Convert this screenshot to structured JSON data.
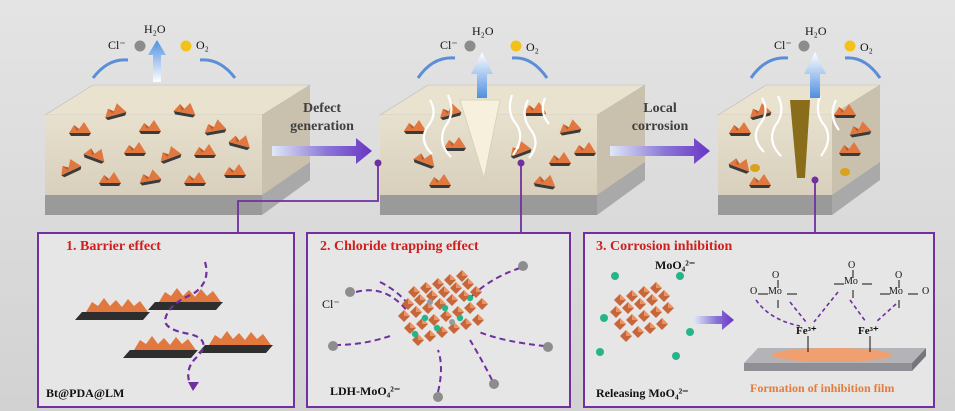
{
  "top": {
    "species": {
      "cl": "Cl⁻",
      "h2o": "H₂O",
      "o2": "O₂"
    },
    "arrow1": {
      "line1": "Defect",
      "line2": "generation"
    },
    "arrow2": {
      "line1": "Local",
      "line2": "corrosion"
    }
  },
  "panels": [
    {
      "title": "1. Barrier effect",
      "label": "Bt@PDA@LM"
    },
    {
      "title": "2. Chloride trapping effect",
      "label": "LDH-MoO₄²⁻",
      "cl": "Cl⁻"
    },
    {
      "title": "3. Corrosion inhibition",
      "ion": "MoO₄²⁻",
      "release": "Releasing MoO₄²⁻",
      "film": "Formation of inhibition film",
      "fe": "Fe³⁺",
      "mo": "Mo",
      "o": "O"
    }
  ],
  "colors": {
    "frame": "#7030a0",
    "title": "#d01e1e",
    "film": "#e77b3a",
    "nanosheet": "#e07840"
  }
}
